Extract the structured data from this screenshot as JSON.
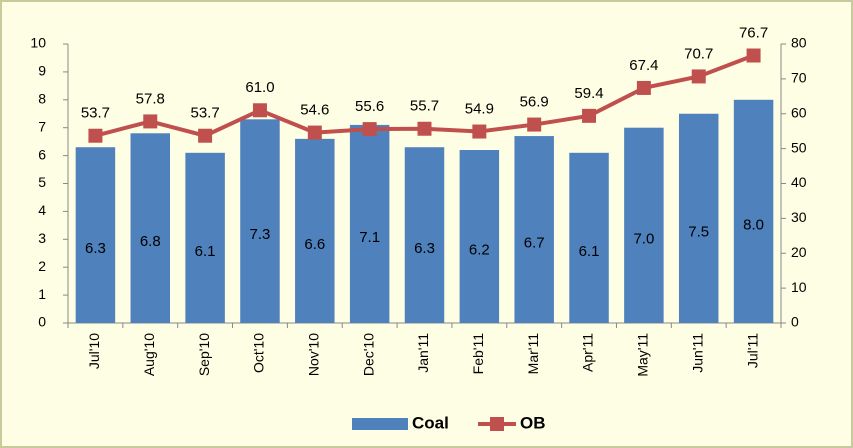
{
  "chart_data": {
    "type": "bar_line",
    "categories": [
      "Jul'10",
      "Aug'10",
      "Sep'10",
      "Oct'10",
      "Nov'10",
      "Dec'10",
      "Jan'11",
      "Feb'11",
      "Mar'11",
      "Apr'11",
      "May'11",
      "Jun'11",
      "Jul'11"
    ],
    "series": [
      {
        "name": "Coal",
        "color": "#4f81bd",
        "values": [
          6.3,
          6.8,
          6.1,
          7.3,
          6.6,
          7.1,
          6.3,
          6.2,
          6.7,
          6.1,
          7.0,
          7.5,
          8.0
        ],
        "value_labels": [
          "6.3",
          "6.8",
          "6.1",
          "7.3",
          "6.6",
          "7.1",
          "6.3",
          "6.2",
          "6.7",
          "6.1",
          "7.0",
          "7.5",
          "8.0"
        ]
      },
      {
        "name": "OB",
        "color": "#c0504d",
        "axis": "y2",
        "values": [
          53.7,
          57.8,
          53.7,
          61.0,
          54.6,
          55.6,
          55.7,
          54.9,
          56.9,
          59.4,
          67.4,
          70.7,
          76.7
        ],
        "value_labels": [
          "53.7",
          "57.8",
          "53.7",
          "61.0",
          "54.6",
          "55.6",
          "55.7",
          "54.9",
          "56.9",
          "59.4",
          "67.4",
          "70.7",
          "76.7"
        ]
      }
    ],
    "ylim": [
      0,
      10
    ],
    "yticks": [
      0,
      1,
      2,
      3,
      4,
      5,
      6,
      7,
      8,
      9,
      10
    ],
    "y2lim": [
      0,
      80
    ],
    "y2ticks": [
      0,
      10,
      20,
      30,
      40,
      50,
      60,
      70,
      80
    ],
    "legend": "bottom"
  }
}
